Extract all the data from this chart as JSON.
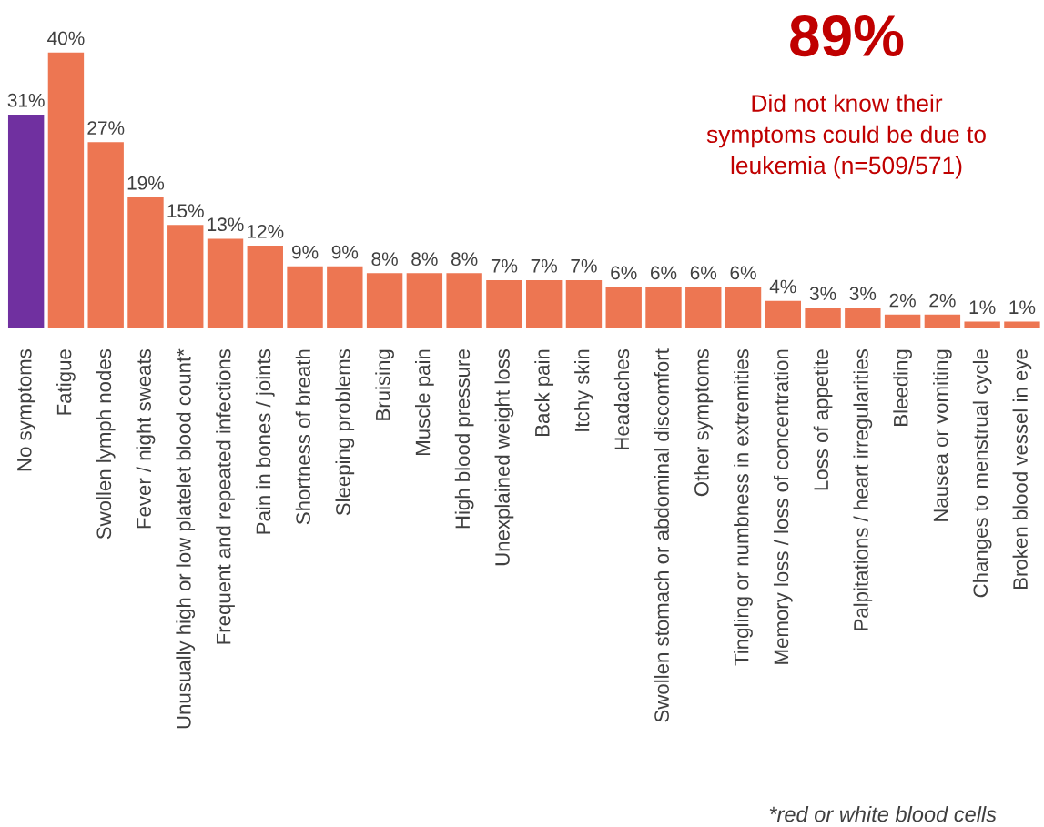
{
  "chart_data": {
    "type": "bar",
    "categories": [
      "No symptoms",
      "Fatigue",
      "Swollen lymph nodes",
      "Fever / night sweats",
      "Unusually high or low platelet blood count*",
      "Frequent and repeated infections",
      "Pain in bones / joints",
      "Shortness of breath",
      "Sleeping problems",
      "Bruising",
      "Muscle pain",
      "High blood pressure",
      "Unexplained weight loss",
      "Back pain",
      "Itchy skin",
      "Headaches",
      "Swollen stomach or abdominal discomfort",
      "Other symptoms",
      "Tingling or numbness in extremities",
      "Memory loss / loss of concentration",
      "Loss of appetite",
      "Palpitations / heart irregularities",
      "Bleeding",
      "Nausea or vomiting",
      "Changes to menstrual cycle",
      "Broken blood vessel in eye"
    ],
    "values": [
      31,
      40,
      27,
      19,
      15,
      13,
      12,
      9,
      9,
      8,
      8,
      8,
      7,
      7,
      7,
      6,
      6,
      6,
      6,
      4,
      3,
      3,
      2,
      2,
      1,
      1
    ],
    "value_labels": [
      "31%",
      "40%",
      "27%",
      "19%",
      "15%",
      "13%",
      "12%",
      "9%",
      "9%",
      "8%",
      "8%",
      "8%",
      "7%",
      "7%",
      "7%",
      "6%",
      "6%",
      "6%",
      "6%",
      "4%",
      "3%",
      "3%",
      "2%",
      "2%",
      "1%",
      "1%"
    ],
    "colors": [
      "#7030a0",
      "#ed7652",
      "#ed7652",
      "#ed7652",
      "#ed7652",
      "#ed7652",
      "#ed7652",
      "#ed7652",
      "#ed7652",
      "#ed7652",
      "#ed7652",
      "#ed7652",
      "#ed7652",
      "#ed7652",
      "#ed7652",
      "#ed7652",
      "#ed7652",
      "#ed7652",
      "#ed7652",
      "#ed7652",
      "#ed7652",
      "#ed7652",
      "#ed7652",
      "#ed7652",
      "#ed7652",
      "#ed7652"
    ],
    "annotations": [
      "89%",
      "Did not know their\nsymptoms could be due to\nleukemia (n=509/571)",
      "*red or white blood cells"
    ],
    "grid": false,
    "legend": false
  }
}
